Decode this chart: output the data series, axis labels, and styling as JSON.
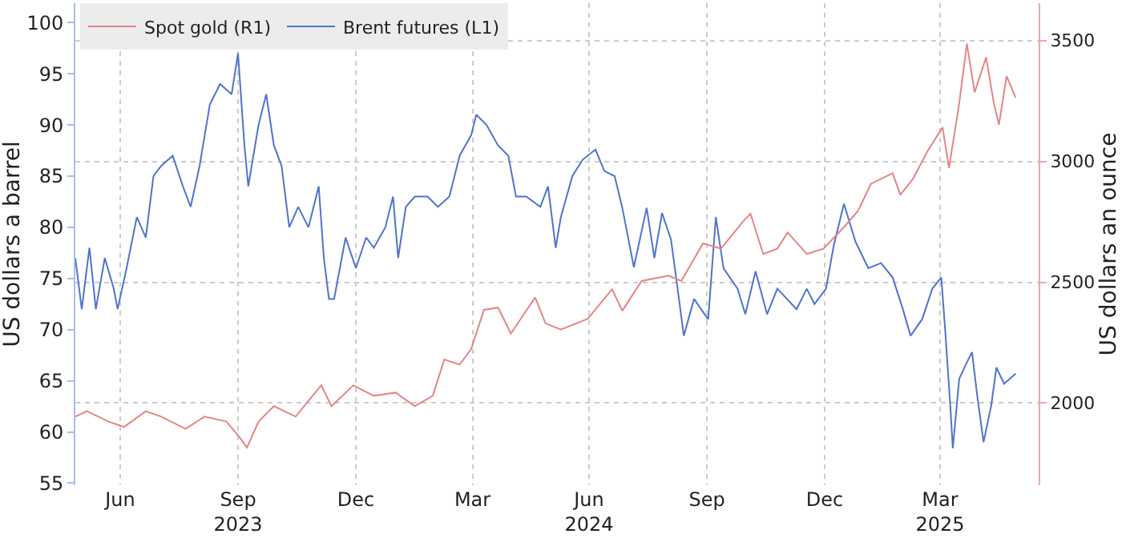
{
  "chart_data": {
    "type": "line",
    "ylabel": "US dollars a barrel",
    "y2label": "US dollars an ounce",
    "xlim": [
      "2023-05-26",
      "2025-06-16"
    ],
    "xticks": [
      {
        "value": "2023-06-30",
        "label": "Jun"
      },
      {
        "value": "2023-09-30",
        "label": "Sep\n2023"
      },
      {
        "value": "2023-12-31",
        "label": "Dec"
      },
      {
        "value": "2024-03-31",
        "label": "Mar"
      },
      {
        "value": "2024-06-30",
        "label": "Jun\n2024"
      },
      {
        "value": "2024-09-30",
        "label": "Sep"
      },
      {
        "value": "2024-12-31",
        "label": "Dec"
      },
      {
        "value": "2025-03-31",
        "label": "Mar\n2025"
      }
    ],
    "ylim": [
      54.8,
      101.9
    ],
    "yticks": [
      55,
      60,
      65,
      70,
      75,
      80,
      85,
      90,
      95,
      100
    ],
    "y2lim": [
      1660,
      3655
    ],
    "y2ticks": [
      2000,
      2500,
      3000,
      3500
    ],
    "grid": true,
    "legend": "top left",
    "series": [
      {
        "name": "Spot gold (R1)",
        "color": "#e58585",
        "axis": "y2",
        "x": [
          "2023-05-26",
          "2023-06-04",
          "2023-06-21",
          "2023-07-03",
          "2023-07-20",
          "2023-08-01",
          "2023-08-20",
          "2023-09-04",
          "2023-09-21",
          "2023-10-01",
          "2023-10-07",
          "2023-10-16",
          "2023-10-28",
          "2023-11-14",
          "2023-11-24",
          "2023-12-04",
          "2023-12-12",
          "2023-12-29",
          "2024-01-14",
          "2024-01-31",
          "2024-02-15",
          "2024-02-29",
          "2024-03-09",
          "2024-03-21",
          "2024-03-30",
          "2024-04-09",
          "2024-04-20",
          "2024-04-30",
          "2024-05-19",
          "2024-05-27",
          "2024-06-08",
          "2024-06-29",
          "2024-07-18",
          "2024-07-26",
          "2024-08-10",
          "2024-08-31",
          "2024-09-10",
          "2024-09-27",
          "2024-10-11",
          "2024-10-28",
          "2024-11-03",
          "2024-11-13",
          "2024-11-24",
          "2024-12-02",
          "2024-12-17",
          "2024-12-30",
          "2025-01-15",
          "2025-01-26",
          "2025-02-05",
          "2025-02-22",
          "2025-02-28",
          "2025-03-10",
          "2025-03-21",
          "2025-04-02",
          "2025-04-07",
          "2025-04-15",
          "2025-04-21",
          "2025-04-27",
          "2025-05-06",
          "2025-05-12",
          "2025-05-16",
          "2025-05-22",
          "2025-05-29"
        ],
        "values": [
          1944,
          1966,
          1923,
          1901,
          1966,
          1944,
          1893,
          1944,
          1923,
          1859,
          1816,
          1923,
          1987,
          1944,
          2009,
          2073,
          1987,
          2073,
          2030,
          2043,
          1987,
          2030,
          2180,
          2159,
          2223,
          2386,
          2395,
          2288,
          2437,
          2330,
          2304,
          2349,
          2471,
          2382,
          2505,
          2527,
          2505,
          2661,
          2639,
          2750,
          2784,
          2617,
          2639,
          2706,
          2617,
          2639,
          2728,
          2795,
          2907,
          2951,
          2862,
          2929,
          3040,
          3141,
          2973,
          3241,
          3487,
          3286,
          3431,
          3241,
          3152,
          3353,
          3264
        ]
      },
      {
        "name": "Brent futures (L1)",
        "color": "#4f74cc",
        "x": [
          "2023-05-26",
          "2023-05-31",
          "2023-06-06",
          "2023-06-11",
          "2023-06-18",
          "2023-06-25",
          "2023-06-28",
          "2023-07-05",
          "2023-07-13",
          "2023-07-20",
          "2023-07-26",
          "2023-08-01",
          "2023-08-10",
          "2023-08-18",
          "2023-08-24",
          "2023-08-31",
          "2023-09-08",
          "2023-09-16",
          "2023-09-25",
          "2023-09-30",
          "2023-10-05",
          "2023-10-08",
          "2023-10-16",
          "2023-10-22",
          "2023-10-28",
          "2023-11-03",
          "2023-11-09",
          "2023-11-16",
          "2023-11-24",
          "2023-12-02",
          "2023-12-06",
          "2023-12-10",
          "2023-12-14",
          "2023-12-23",
          "2023-12-31",
          "2024-01-08",
          "2024-01-14",
          "2024-01-23",
          "2024-01-29",
          "2024-02-02",
          "2024-02-08",
          "2024-02-15",
          "2024-02-25",
          "2024-03-04",
          "2024-03-13",
          "2024-03-21",
          "2024-03-30",
          "2024-04-03",
          "2024-04-11",
          "2024-04-20",
          "2024-04-28",
          "2024-05-01",
          "2024-05-04",
          "2024-05-12",
          "2024-05-23",
          "2024-05-29",
          "2024-06-04",
          "2024-06-08",
          "2024-06-17",
          "2024-06-25",
          "2024-07-05",
          "2024-07-12",
          "2024-07-20",
          "2024-07-26",
          "2024-08-04",
          "2024-08-14",
          "2024-08-20",
          "2024-08-26",
          "2024-09-02",
          "2024-09-06",
          "2024-09-12",
          "2024-09-20",
          "2024-10-01",
          "2024-10-07",
          "2024-10-13",
          "2024-10-24",
          "2024-10-30",
          "2024-11-07",
          "2024-11-16",
          "2024-11-24",
          "2024-12-09",
          "2024-12-17",
          "2024-12-23",
          "2025-01-01",
          "2025-01-07",
          "2025-01-15",
          "2025-01-24",
          "2025-02-03",
          "2025-02-13",
          "2025-02-22",
          "2025-03-02",
          "2025-03-08",
          "2025-03-17",
          "2025-03-25",
          "2025-04-01",
          "2025-04-04",
          "2025-04-08",
          "2025-04-10",
          "2025-04-15",
          "2025-04-21",
          "2025-04-25",
          "2025-04-29",
          "2025-05-04",
          "2025-05-10",
          "2025-05-14",
          "2025-05-20",
          "2025-05-29"
        ],
        "values": [
          77,
          72,
          78,
          72,
          77,
          74,
          72,
          76,
          81,
          79,
          85,
          86,
          87,
          84,
          82,
          86,
          92,
          94,
          93,
          97,
          88,
          84,
          90,
          93,
          88,
          86,
          80,
          82,
          80,
          84,
          77,
          73,
          73,
          79,
          76,
          79,
          78,
          80,
          83,
          77,
          82,
          83,
          83,
          82,
          83,
          87,
          89,
          91,
          90,
          88,
          87,
          85,
          83,
          83,
          82,
          84,
          78,
          81,
          85,
          86.6,
          87.6,
          85.5,
          85,
          81.9,
          76.1,
          81.9,
          77,
          81.4,
          78.8,
          75.1,
          69.4,
          73,
          71,
          81,
          76,
          74,
          71.5,
          75.7,
          71.5,
          74,
          72,
          74,
          72.5,
          74,
          78.2,
          82.3,
          78.6,
          76,
          76.5,
          75.1,
          72,
          69.4,
          71,
          74,
          75.1,
          70,
          62.6,
          58.4,
          65.2,
          66.8,
          67.8,
          63.6,
          59,
          62.6,
          66.3,
          64.7,
          65.7
        ]
      }
    ]
  }
}
